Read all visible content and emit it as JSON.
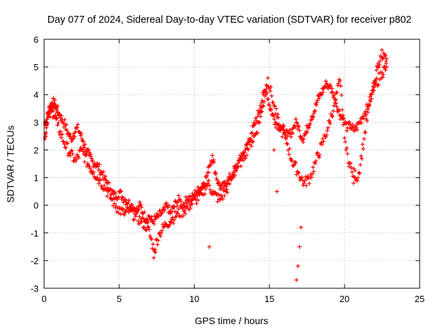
{
  "chart_data": {
    "type": "scatter",
    "title": "Day 077 of 2024, Sidereal Day-to-day VTEC variation (SDTVAR) for receiver p802",
    "xlabel": "GPS time / hours",
    "ylabel": "SDTVAR / TECUs",
    "xlim": [
      0,
      25
    ],
    "ylim": [
      -3,
      6
    ],
    "xticks": [
      "0",
      "5",
      "10",
      "15",
      "20",
      "25"
    ],
    "yticks": [
      "-3",
      "-2",
      "-1",
      "0",
      "1",
      "2",
      "3",
      "4",
      "5",
      "6"
    ],
    "grid": true,
    "marker": "+",
    "color": "#ff0000",
    "series": [
      {
        "name": "SDTVAR",
        "x": [
          0.05,
          0.15,
          0.25,
          0.35,
          0.45,
          0.55,
          0.65,
          0.75,
          0.85,
          1.0,
          1.2,
          1.4,
          1.6,
          1.8,
          2.0,
          2.2,
          2.4,
          2.6,
          2.8,
          3.0,
          3.2,
          3.4,
          3.6,
          3.8,
          4.0,
          4.2,
          4.4,
          4.6,
          4.8,
          5.0,
          5.2,
          5.4,
          5.6,
          5.8,
          6.0,
          6.2,
          6.4,
          6.6,
          6.8,
          7.0,
          7.2,
          7.4,
          7.6,
          7.8,
          8.0,
          8.2,
          8.4,
          8.6,
          8.8,
          9.0,
          9.2,
          9.4,
          9.6,
          9.8,
          10.0,
          10.2,
          10.4,
          10.6,
          10.8,
          11.0,
          11.2,
          11.4,
          11.6,
          11.8,
          12.0,
          12.2,
          12.4,
          12.6,
          12.8,
          13.0,
          13.2,
          13.4,
          13.6,
          13.8,
          14.0,
          14.2,
          14.4,
          14.6,
          14.8,
          15.0,
          15.2,
          15.4,
          15.6,
          15.8,
          16.0,
          16.2,
          16.4,
          16.6,
          16.8,
          17.0,
          17.2,
          17.4,
          17.6,
          17.8,
          18.0,
          18.2,
          18.4,
          18.6,
          18.8,
          19.0,
          19.2,
          19.4,
          19.6,
          19.8,
          20.0,
          20.2,
          20.4,
          20.6,
          20.8,
          21.0,
          21.2,
          21.4,
          21.6,
          21.8,
          22.0,
          22.2,
          22.4,
          22.6,
          22.8
        ],
        "y": [
          2.4,
          2.8,
          3.3,
          3.5,
          3.6,
          3.7,
          3.7,
          3.6,
          3.5,
          3.3,
          3.1,
          2.9,
          2.6,
          2.4,
          2.6,
          2.8,
          2.6,
          2.3,
          2.0,
          1.8,
          1.6,
          1.5,
          1.4,
          1.2,
          1.0,
          0.8,
          0.6,
          0.4,
          0.3,
          0.5,
          0.3,
          0.2,
          0.1,
          0.0,
          -0.1,
          -0.2,
          0.0,
          -0.3,
          -0.5,
          -0.4,
          -0.6,
          -0.5,
          -0.4,
          -0.3,
          -0.2,
          0.0,
          -0.3,
          -0.1,
          0.1,
          0.2,
          0.0,
          0.1,
          0.3,
          0.2,
          0.4,
          0.5,
          0.6,
          0.8,
          1.0,
          1.4,
          1.8,
          1.2,
          0.8,
          0.6,
          0.7,
          0.9,
          1.0,
          1.2,
          1.4,
          1.6,
          1.8,
          2.0,
          2.3,
          2.6,
          2.9,
          3.2,
          3.6,
          4.0,
          4.2,
          3.6,
          3.3,
          3.0,
          2.9,
          2.8,
          2.7,
          2.5,
          2.6,
          2.8,
          3.0,
          2.7,
          2.4,
          2.6,
          2.9,
          3.2,
          3.4,
          3.8,
          4.0,
          4.2,
          4.4,
          4.3,
          4.1,
          3.8,
          3.4,
          3.2,
          3.0,
          2.8,
          2.9,
          2.7,
          2.8,
          3.0,
          3.2,
          3.4,
          3.6,
          4.0,
          4.5,
          5.0,
          5.4,
          5.5,
          5.3
        ],
        "x2": [
          0.05,
          0.3,
          0.6,
          0.9,
          1.3,
          1.7,
          2.1,
          2.5,
          2.9,
          3.3,
          3.7,
          4.1,
          4.5,
          4.9,
          5.3,
          5.7,
          6.1,
          6.5,
          6.9,
          7.3,
          7.7,
          8.1,
          8.5,
          8.9,
          9.3,
          9.7,
          10.1,
          10.5,
          10.9,
          11.3,
          11.7,
          12.1,
          12.5,
          12.9,
          13.3,
          13.7,
          14.1,
          14.5,
          14.9,
          15.3,
          15.7,
          16.1,
          16.5,
          16.9,
          17.3,
          17.7,
          18.1,
          18.5,
          18.9,
          19.3,
          19.7,
          20.1,
          20.5,
          20.9,
          21.3,
          21.7,
          22.1,
          22.5,
          22.8
        ],
        "y2": [
          3.0,
          3.2,
          3.4,
          2.9,
          2.3,
          1.9,
          1.6,
          2.0,
          1.5,
          1.2,
          0.9,
          0.6,
          0.2,
          -0.1,
          -0.3,
          -0.2,
          -0.4,
          -0.6,
          -0.8,
          -1.6,
          -1.0,
          -0.7,
          -0.5,
          -0.3,
          -0.2,
          0.0,
          0.2,
          0.4,
          0.8,
          0.4,
          0.2,
          0.5,
          1.0,
          1.4,
          1.8,
          2.2,
          2.6,
          3.4,
          4.6,
          3.6,
          2.8,
          2.4,
          1.6,
          1.2,
          0.8,
          1.0,
          1.6,
          2.2,
          2.8,
          3.6,
          4.5,
          2.0,
          1.2,
          1.0,
          2.4,
          3.8,
          4.4,
          4.8,
          5.0
        ],
        "outliers_x": [
          15.3,
          15.5,
          16.8,
          16.9,
          17.0,
          17.1,
          11.0,
          7.3,
          7.4,
          20.6,
          20.7
        ],
        "outliers_y": [
          2.0,
          0.5,
          -2.7,
          -2.2,
          -1.5,
          -0.8,
          -1.5,
          -1.9,
          -1.7,
          0.8,
          1.0
        ]
      }
    ]
  }
}
